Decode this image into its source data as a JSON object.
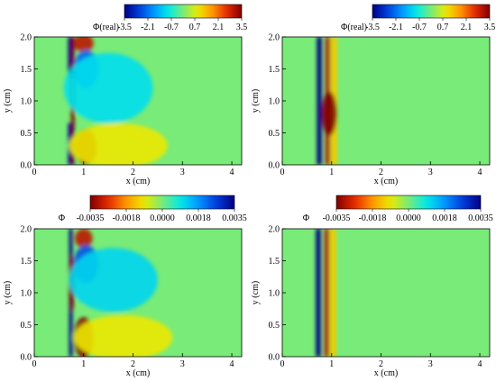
{
  "chart_data": [
    {
      "type": "heatmap",
      "panel": "top-left",
      "colorbar_label": "Φ(real)",
      "colorbar_ticks": [
        "-3.5",
        "-2.1",
        "-0.7",
        "0.7",
        "2.1",
        "3.5"
      ],
      "colorbar_range": [
        -3.5,
        3.5
      ],
      "colormap": "blue-green-red",
      "xlabel": "x (cm)",
      "ylabel": "y (cm)",
      "xlim": [
        0,
        4.2
      ],
      "ylim": [
        0,
        2.0
      ],
      "xticks": [
        "0",
        "1",
        "2",
        "3",
        "4"
      ],
      "yticks": [
        "0.0",
        "0.5",
        "1.0",
        "1.5",
        "2.0"
      ],
      "features": [
        {
          "kind": "band",
          "x": 0.78,
          "y_from": 0,
          "y_to": 2.0,
          "value": 3.5,
          "width": 0.07
        },
        {
          "kind": "band",
          "x": 0.72,
          "y_from": 0.0,
          "y_to": 0.65,
          "value": -3.5,
          "width": 0.07
        },
        {
          "kind": "band",
          "x": 0.72,
          "y_from": 1.35,
          "y_to": 2.0,
          "value": -3.5,
          "width": 0.07
        },
        {
          "kind": "blob",
          "x": 1.05,
          "y": 0.28,
          "rx": 0.22,
          "ry": 0.28,
          "value": 3.3
        },
        {
          "kind": "blob",
          "x": 1.0,
          "y": 1.9,
          "rx": 0.2,
          "ry": 0.14,
          "value": 3.0
        },
        {
          "kind": "blob",
          "x": 1.05,
          "y": 1.5,
          "rx": 0.25,
          "ry": 0.3,
          "value": -2.2
        },
        {
          "kind": "blob",
          "x": 1.5,
          "y": 1.2,
          "rx": 0.9,
          "ry": 0.55,
          "value": -1.0
        },
        {
          "kind": "blob",
          "x": 1.7,
          "y": 0.3,
          "rx": 1.0,
          "ry": 0.35,
          "value": 0.9
        }
      ]
    },
    {
      "type": "heatmap",
      "panel": "top-right",
      "colorbar_label": "Φ(real)",
      "colorbar_ticks": [
        "-3.5",
        "-2.1",
        "-0.7",
        "0.7",
        "2.1",
        "3.5"
      ],
      "colorbar_range": [
        -3.5,
        3.5
      ],
      "colormap": "blue-green-red",
      "xlabel": "x (cm)",
      "ylabel": "y (cm)",
      "xlim": [
        0,
        4.2
      ],
      "ylim": [
        0,
        2.0
      ],
      "xticks": [
        "0",
        "1",
        "2",
        "3",
        "4"
      ],
      "yticks": [
        "0.0",
        "0.5",
        "1.0",
        "1.5",
        "2.0"
      ],
      "features": [
        {
          "kind": "band",
          "x": 0.75,
          "y_from": 0,
          "y_to": 2.0,
          "value": -3.5,
          "width": 0.1
        },
        {
          "kind": "band",
          "x": 0.92,
          "y_from": 0,
          "y_to": 2.0,
          "value": 3.0,
          "width": 0.09
        },
        {
          "kind": "band",
          "x": 1.05,
          "y_from": 0,
          "y_to": 2.0,
          "value": 1.2,
          "width": 0.12
        },
        {
          "kind": "blob",
          "x": 0.95,
          "y": 0.8,
          "rx": 0.15,
          "ry": 0.35,
          "value": 3.5
        }
      ]
    },
    {
      "type": "heatmap",
      "panel": "bottom-left",
      "colorbar_label": "Φ",
      "colorbar_ticks": [
        "-0.0035",
        "-0.0018",
        "0.0000",
        "0.0018",
        "0.0035"
      ],
      "colorbar_range": [
        -0.0035,
        0.0035
      ],
      "colormap": "red-green-blue",
      "xlabel": "x (cm)",
      "ylabel": "y (cm)",
      "xlim": [
        0,
        4.2
      ],
      "ylim": [
        0,
        2.0
      ],
      "xticks": [
        "0",
        "1",
        "2",
        "3",
        "4"
      ],
      "yticks": [
        "0.0",
        "0.5",
        "1.0",
        "1.5",
        "2.0"
      ],
      "features": [
        {
          "kind": "band",
          "x": 0.74,
          "y_from": 0,
          "y_to": 2.0,
          "value": 0.0035,
          "width": 0.07
        },
        {
          "kind": "blob",
          "x": 0.76,
          "y": 1.15,
          "rx": 0.06,
          "ry": 0.45,
          "value": -0.0035
        },
        {
          "kind": "blob",
          "x": 1.0,
          "y": 0.3,
          "rx": 0.2,
          "ry": 0.32,
          "value": -0.0034
        },
        {
          "kind": "blob",
          "x": 1.0,
          "y": 1.85,
          "rx": 0.18,
          "ry": 0.15,
          "value": -0.003
        },
        {
          "kind": "blob",
          "x": 1.05,
          "y": 1.45,
          "rx": 0.25,
          "ry": 0.3,
          "value": 0.0024
        },
        {
          "kind": "blob",
          "x": 1.6,
          "y": 1.2,
          "rx": 0.9,
          "ry": 0.5,
          "value": 0.0011
        },
        {
          "kind": "blob",
          "x": 1.8,
          "y": 0.3,
          "rx": 1.0,
          "ry": 0.35,
          "value": -0.0009
        }
      ]
    },
    {
      "type": "heatmap",
      "panel": "bottom-right",
      "colorbar_label": "Φ",
      "colorbar_ticks": [
        "-0.0035",
        "-0.0018",
        "0.0000",
        "0.0018",
        "0.0035"
      ],
      "colorbar_range": [
        -0.0035,
        0.0035
      ],
      "colormap": "red-green-blue",
      "xlabel": "x (cm)",
      "ylabel": "y (cm)",
      "xlim": [
        0,
        4.2
      ],
      "ylim": [
        0,
        2.0
      ],
      "xticks": [
        "0",
        "1",
        "2",
        "3",
        "4"
      ],
      "yticks": [
        "0.0",
        "0.5",
        "1.0",
        "1.5",
        "2.0"
      ],
      "features": [
        {
          "kind": "band",
          "x": 0.73,
          "y_from": 0,
          "y_to": 2.0,
          "value": 0.0035,
          "width": 0.1
        },
        {
          "kind": "band",
          "x": 0.9,
          "y_from": 0,
          "y_to": 2.0,
          "value": -0.003,
          "width": 0.09
        },
        {
          "kind": "band",
          "x": 1.03,
          "y_from": 0,
          "y_to": 2.0,
          "value": -0.0012,
          "width": 0.12
        }
      ]
    }
  ]
}
